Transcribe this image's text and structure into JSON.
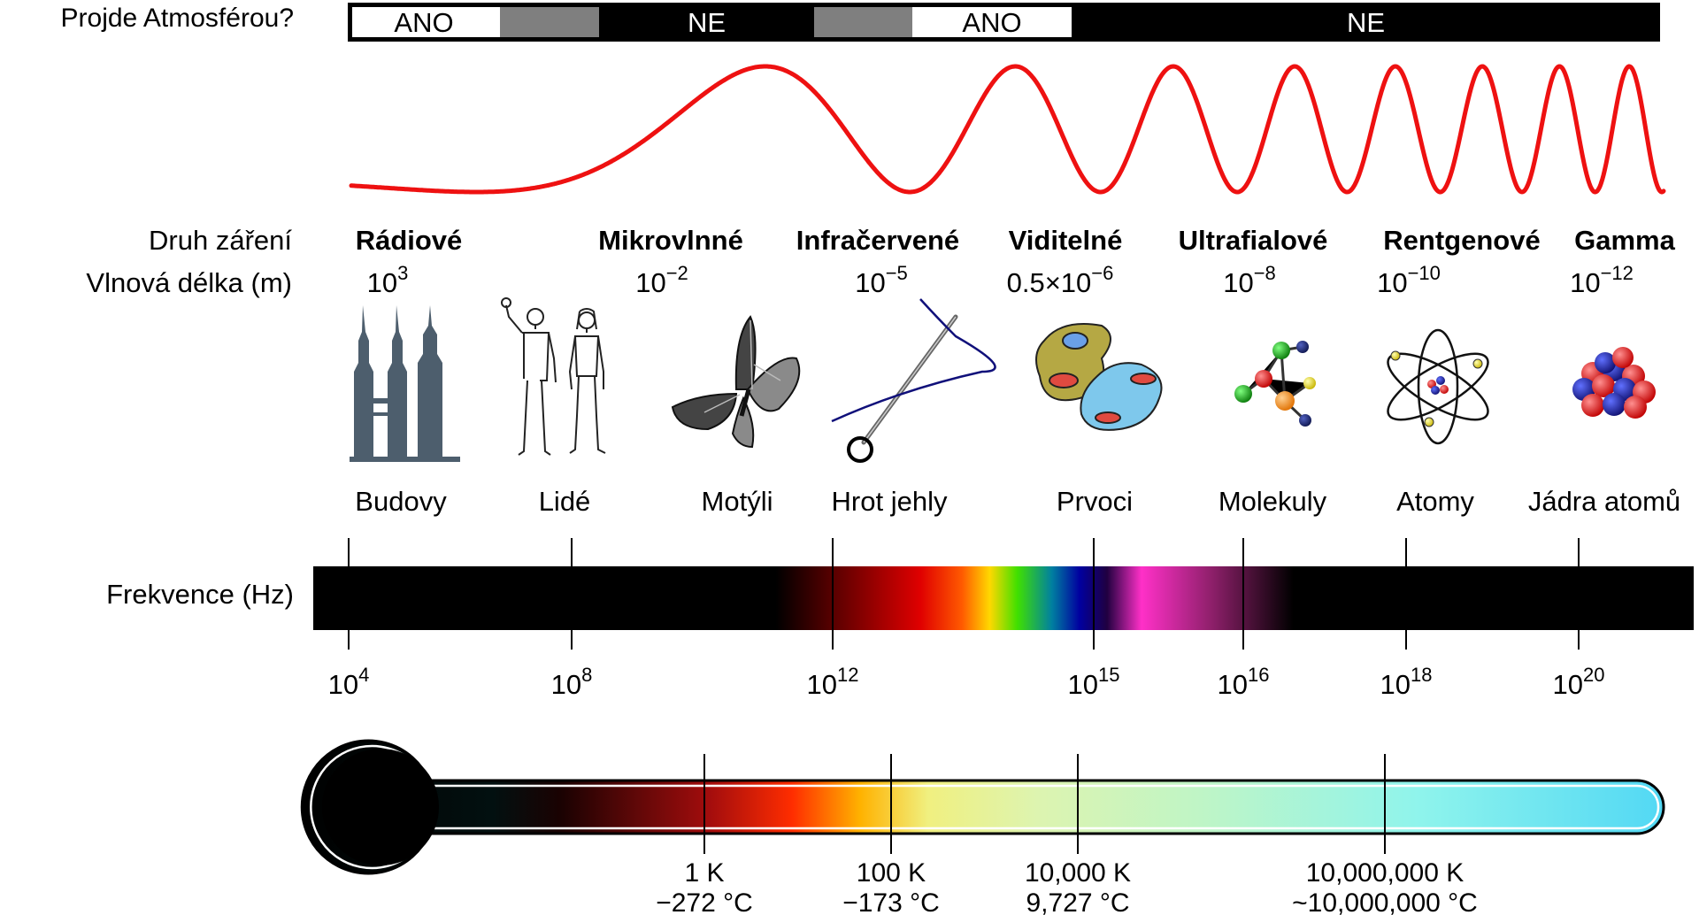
{
  "atmosphere": {
    "label": "Projde Atmosférou?",
    "segments": [
      {
        "text": "ANO",
        "color": "#ffffff"
      },
      {
        "text": "",
        "color": "#7f7f7f"
      },
      {
        "text": "NE",
        "color": "#000000"
      },
      {
        "text": "",
        "color": "#7f7f7f"
      },
      {
        "text": "ANO",
        "color": "#ffffff"
      },
      {
        "text": "NE",
        "color": "#000000"
      }
    ]
  },
  "wave": {
    "color": "#ee1111"
  },
  "row_labels": {
    "type": "Druh záření",
    "wavelength": "Vlnová délka (m)",
    "frequency": "Frekvence (Hz)"
  },
  "bands": [
    {
      "name": "Rádiové",
      "wl_base": "10",
      "wl_exp": "3"
    },
    {
      "name": "Mikrovlnné",
      "wl_base": "10",
      "wl_exp": "−2"
    },
    {
      "name": "Infračervené",
      "wl_base": "10",
      "wl_exp": "−5"
    },
    {
      "name": "Viditelné",
      "wl_base": "0.5×10",
      "wl_exp": "−6"
    },
    {
      "name": "Ultrafialové",
      "wl_base": "10",
      "wl_exp": "−8"
    },
    {
      "name": "Rentgenové",
      "wl_base": "10",
      "wl_exp": "−10"
    },
    {
      "name": "Gamma",
      "wl_base": "10",
      "wl_exp": "−12"
    }
  ],
  "scale_objects": [
    {
      "label": "Budovy",
      "icon": "buildings-icon"
    },
    {
      "label": "Lidé",
      "icon": "humans-icon"
    },
    {
      "label": "Motýli",
      "icon": "butterfly-icon"
    },
    {
      "label": "Hrot jehly",
      "icon": "needle-icon"
    },
    {
      "label": "Prvoci",
      "icon": "protozoa-icon"
    },
    {
      "label": "Molekuly",
      "icon": "molecule-icon"
    },
    {
      "label": "Atomy",
      "icon": "atom-icon"
    },
    {
      "label": "Jádra atomů",
      "icon": "nucleus-icon"
    }
  ],
  "frequency_ticks": [
    {
      "base": "10",
      "exp": "4"
    },
    {
      "base": "10",
      "exp": "8"
    },
    {
      "base": "10",
      "exp": "12"
    },
    {
      "base": "10",
      "exp": "15"
    },
    {
      "base": "10",
      "exp": "16"
    },
    {
      "base": "10",
      "exp": "18"
    },
    {
      "base": "10",
      "exp": "20"
    }
  ],
  "temperature_ticks": [
    {
      "kelvin": "1 K",
      "celsius": "−272 °C"
    },
    {
      "kelvin": "100 K",
      "celsius": "−173 °C"
    },
    {
      "kelvin": "10,000 K",
      "celsius": "9,727 °C"
    },
    {
      "kelvin": "10,000,000 K",
      "celsius": "~10,000,000 °C"
    }
  ]
}
